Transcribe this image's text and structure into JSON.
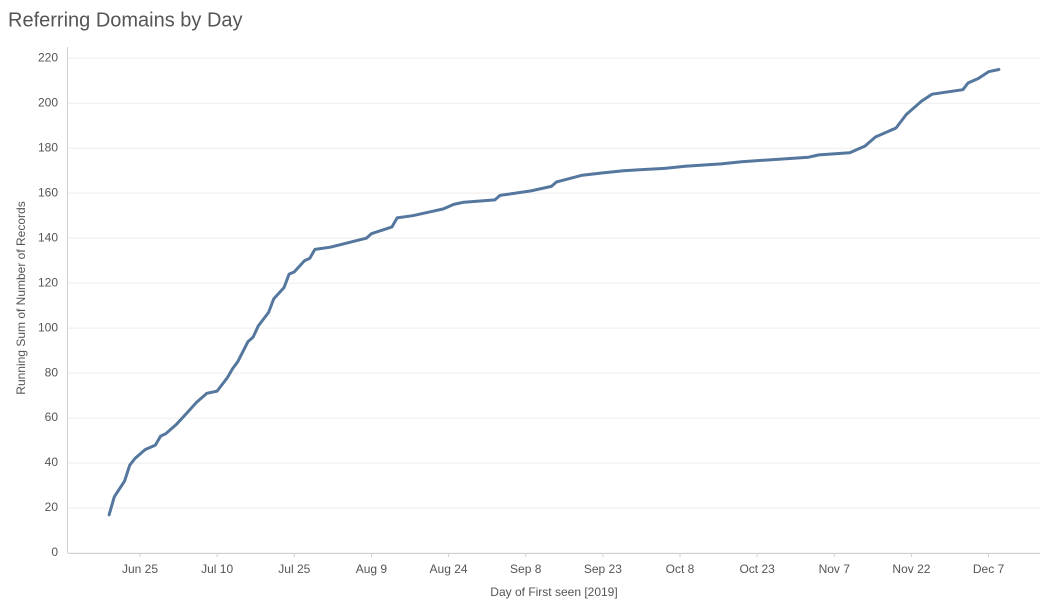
{
  "chart_data": {
    "type": "line",
    "title": "Referring Domains by Day",
    "x_label": "Day of First seen [2019]",
    "y_label": "Running Sum of Number of Records",
    "x": [
      "2019-06-19",
      "2019-06-20",
      "2019-06-22",
      "2019-06-23",
      "2019-06-24",
      "2019-06-26",
      "2019-06-28",
      "2019-06-29",
      "2019-06-30",
      "2019-07-02",
      "2019-07-04",
      "2019-07-06",
      "2019-07-08",
      "2019-07-10",
      "2019-07-12",
      "2019-07-13",
      "2019-07-14",
      "2019-07-16",
      "2019-07-17",
      "2019-07-18",
      "2019-07-20",
      "2019-07-21",
      "2019-07-23",
      "2019-07-24",
      "2019-07-25",
      "2019-07-27",
      "2019-07-28",
      "2019-07-29",
      "2019-08-01",
      "2019-08-08",
      "2019-08-09",
      "2019-08-13",
      "2019-08-14",
      "2019-08-17",
      "2019-08-21",
      "2019-08-23",
      "2019-08-25",
      "2019-08-27",
      "2019-09-02",
      "2019-09-03",
      "2019-09-09",
      "2019-09-13",
      "2019-09-14",
      "2019-09-19",
      "2019-09-23",
      "2019-09-27",
      "2019-10-05",
      "2019-10-09",
      "2019-10-16",
      "2019-10-20",
      "2019-11-02",
      "2019-11-04",
      "2019-11-10",
      "2019-11-13",
      "2019-11-15",
      "2019-11-19",
      "2019-11-21",
      "2019-11-24",
      "2019-11-26",
      "2019-12-02",
      "2019-12-03",
      "2019-12-05",
      "2019-12-07",
      "2019-12-09"
    ],
    "values": [
      17,
      25,
      32,
      39,
      42,
      46,
      48,
      52,
      53,
      57,
      62,
      67,
      71,
      72,
      78,
      82,
      85,
      94,
      96,
      101,
      107,
      113,
      118,
      124,
      125,
      130,
      131,
      135,
      136,
      140,
      142,
      145,
      149,
      150,
      152,
      153,
      155,
      156,
      157,
      159,
      161,
      163,
      165,
      168,
      169,
      170,
      171,
      172,
      173,
      174,
      176,
      177,
      178,
      181,
      185,
      189,
      195,
      201,
      204,
      206,
      209,
      211,
      214,
      215
    ],
    "color": "#55779e",
    "xlim": [
      "2019-06-11",
      "2019-12-17"
    ],
    "xticks": [
      {
        "value": "2019-06-25",
        "label": "Jun 25"
      },
      {
        "value": "2019-07-10",
        "label": "Jul 10"
      },
      {
        "value": "2019-07-25",
        "label": "Jul 25"
      },
      {
        "value": "2019-08-09",
        "label": "Aug 9"
      },
      {
        "value": "2019-08-24",
        "label": "Aug 24"
      },
      {
        "value": "2019-09-08",
        "label": "Sep 8"
      },
      {
        "value": "2019-09-23",
        "label": "Sep 23"
      },
      {
        "value": "2019-10-08",
        "label": "Oct 8"
      },
      {
        "value": "2019-10-23",
        "label": "Oct 23"
      },
      {
        "value": "2019-11-07",
        "label": "Nov 7"
      },
      {
        "value": "2019-11-22",
        "label": "Nov 22"
      },
      {
        "value": "2019-12-07",
        "label": "Dec 7"
      }
    ],
    "ylim": [
      0,
      225
    ],
    "yticks": [
      0,
      20,
      40,
      60,
      80,
      100,
      120,
      140,
      160,
      180,
      200,
      220
    ],
    "grid": true
  }
}
